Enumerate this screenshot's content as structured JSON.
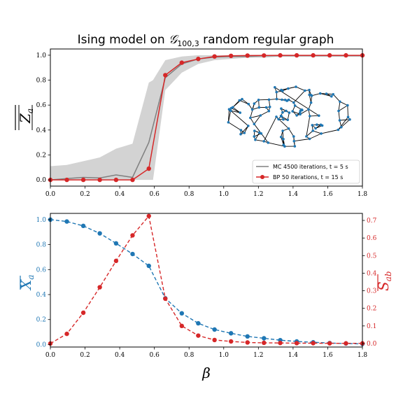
{
  "chart_data": [
    {
      "type": "line",
      "title": "Ising model on 𝒢₁₀₀,₃ random regular graph",
      "ylabel": "|Z_a| (overline)",
      "xlim": [
        0,
        1.8
      ],
      "ylim": [
        -0.05,
        1.05
      ],
      "x_ticks": [
        "0.0",
        "0.2",
        "0.4",
        "0.6",
        "0.8",
        "1.0",
        "1.2",
        "1.4",
        "1.6",
        "1.8"
      ],
      "y_ticks": [
        "0.0",
        "0.2",
        "0.4",
        "0.6",
        "0.8",
        "1.0"
      ],
      "grid": false,
      "legend_position": "lower-right",
      "inset": "random regular graph drawing (100 nodes, degree 3)",
      "band": {
        "x": [
          0.0,
          0.095,
          0.19,
          0.285,
          0.379,
          0.474,
          0.568,
          0.592,
          0.663,
          0.758,
          0.853,
          0.947,
          1.042,
          1.137,
          1.232,
          1.326,
          1.421,
          1.516,
          1.611,
          1.705,
          1.8
        ],
        "upper": [
          0.11,
          0.12,
          0.15,
          0.18,
          0.25,
          0.29,
          0.78,
          0.8,
          0.96,
          0.99,
          1.0,
          1.0,
          1.0,
          1.0,
          1.0,
          1.0,
          1.0,
          1.0,
          1.0,
          1.0,
          1.0
        ],
        "lower": [
          0.0,
          0.0,
          0.0,
          0.0,
          0.0,
          0.0,
          0.0,
          0.0,
          0.72,
          0.86,
          0.93,
          0.96,
          0.97,
          0.98,
          0.98,
          0.99,
          0.99,
          0.99,
          0.99,
          0.99,
          0.99
        ]
      },
      "series": [
        {
          "name": "MC 4500 iterations, t = 5 s",
          "color": "#808080",
          "x": [
            0.0,
            0.095,
            0.19,
            0.285,
            0.379,
            0.474,
            0.568,
            0.663,
            0.758,
            0.853,
            0.947,
            1.042,
            1.137,
            1.232,
            1.326,
            1.421,
            1.516,
            1.611,
            1.705,
            1.8
          ],
          "y": [
            0.0,
            0.01,
            0.02,
            0.015,
            0.04,
            0.02,
            0.3,
            0.82,
            0.93,
            0.97,
            0.985,
            0.99,
            0.99,
            0.995,
            0.995,
            0.995,
            0.995,
            0.995,
            0.995,
            0.995
          ]
        },
        {
          "name": "BP 50 iterations, t = 15 s",
          "color": "#d62728",
          "x": [
            0.0,
            0.095,
            0.19,
            0.285,
            0.379,
            0.474,
            0.568,
            0.663,
            0.758,
            0.853,
            0.947,
            1.042,
            1.137,
            1.232,
            1.326,
            1.421,
            1.516,
            1.611,
            1.705,
            1.8
          ],
          "y": [
            0.0,
            0.0,
            0.0,
            0.0,
            0.0,
            0.0,
            0.09,
            0.84,
            0.94,
            0.97,
            0.99,
            0.995,
            0.997,
            0.998,
            0.999,
            0.999,
            0.999,
            0.999,
            0.999,
            0.999
          ]
        }
      ]
    },
    {
      "type": "line",
      "xlabel": "β",
      "ylabel_left": "X_a (overline)",
      "ylabel_right": "S_ab (overline)",
      "xlim": [
        0,
        1.8
      ],
      "ylim_left": [
        -0.02,
        1.05
      ],
      "ylim_right": [
        -0.02,
        0.74
      ],
      "x_ticks": [
        "0.0",
        "0.2",
        "0.4",
        "0.6",
        "0.8",
        "1.0",
        "1.2",
        "1.4",
        "1.6",
        "1.8"
      ],
      "y_ticks_left": [
        "0.0",
        "0.2",
        "0.4",
        "0.6",
        "0.8",
        "1.0"
      ],
      "y_ticks_right": [
        "0.0",
        "0.1",
        "0.2",
        "0.3",
        "0.4",
        "0.5",
        "0.6",
        "0.7"
      ],
      "grid": false,
      "series": [
        {
          "axis": "left",
          "color": "#1f77b4",
          "style": "dashed",
          "x": [
            0.0,
            0.095,
            0.19,
            0.285,
            0.379,
            0.474,
            0.568,
            0.663,
            0.758,
            0.853,
            0.947,
            1.042,
            1.137,
            1.232,
            1.326,
            1.421,
            1.516,
            1.611,
            1.705,
            1.8
          ],
          "y": [
            1.0,
            0.985,
            0.95,
            0.89,
            0.81,
            0.725,
            0.63,
            0.37,
            0.25,
            0.17,
            0.12,
            0.09,
            0.065,
            0.05,
            0.035,
            0.025,
            0.018,
            0.012,
            0.008,
            0.005
          ]
        },
        {
          "axis": "right",
          "color": "#d62728",
          "style": "dashed",
          "x": [
            0.0,
            0.095,
            0.19,
            0.285,
            0.379,
            0.474,
            0.568,
            0.663,
            0.758,
            0.853,
            0.947,
            1.042,
            1.137,
            1.232,
            1.326,
            1.421,
            1.516,
            1.611,
            1.705,
            1.8
          ],
          "y": [
            0.0,
            0.055,
            0.175,
            0.32,
            0.47,
            0.615,
            0.725,
            0.255,
            0.1,
            0.045,
            0.02,
            0.012,
            0.006,
            0.004,
            0.003,
            0.002,
            0.002,
            0.001,
            0.001,
            0.001
          ]
        }
      ]
    }
  ]
}
